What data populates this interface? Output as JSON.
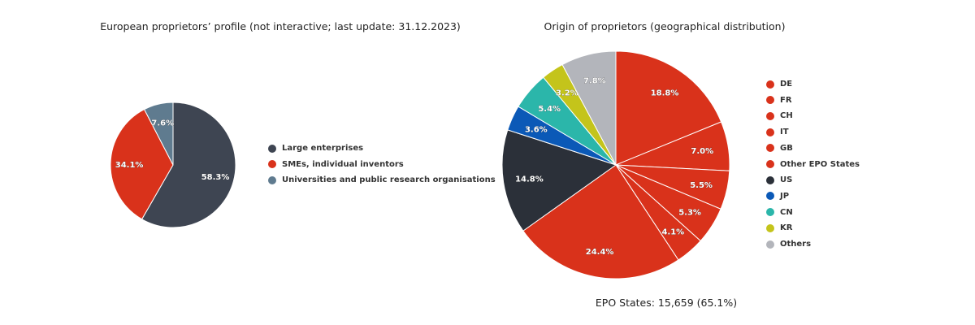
{
  "chart_data": [
    {
      "type": "pie",
      "title": "European proprietors’ profile (not interactive; last update: 31.12.2023)",
      "legend_placement": "right",
      "slices": [
        {
          "name": "Large enterprises",
          "value": 58.3,
          "label": "58.3%",
          "color": "#3e4552"
        },
        {
          "name": "SMEs, individual inventors",
          "value": 34.1,
          "label": "34.1%",
          "color": "#d9321b"
        },
        {
          "name": "Universities and public research organisations",
          "value": 7.6,
          "label": "7.6%",
          "color": "#5f7b8f"
        }
      ]
    },
    {
      "type": "pie",
      "title": "Origin of proprietors (geographical distribution)",
      "legend_placement": "right",
      "caption": "EPO States: 15,659 (65.1%)",
      "slices": [
        {
          "name": "DE",
          "value": 18.8,
          "label": "18.8%",
          "color": "#d9321b"
        },
        {
          "name": "FR",
          "value": 7.0,
          "label": "7.0%",
          "color": "#d9321b"
        },
        {
          "name": "CH",
          "value": 5.5,
          "label": "5.5%",
          "color": "#d9321b"
        },
        {
          "name": "IT",
          "value": 5.3,
          "label": "5.3%",
          "color": "#d9321b"
        },
        {
          "name": "GB",
          "value": 4.1,
          "label": "4.1%",
          "color": "#d9321b"
        },
        {
          "name": "Other EPO States",
          "value": 24.4,
          "label": "24.4%",
          "color": "#d9321b"
        },
        {
          "name": "US",
          "value": 14.8,
          "label": "14.8%",
          "color": "#2b3039"
        },
        {
          "name": "JP",
          "value": 3.6,
          "label": "3.6%",
          "color": "#0b59b7"
        },
        {
          "name": "CN",
          "value": 5.4,
          "label": "5.4%",
          "color": "#2bb6aa"
        },
        {
          "name": "KR",
          "value": 3.2,
          "label": "3.2%",
          "color": "#c4c41b"
        },
        {
          "name": "Others",
          "value": 7.8,
          "label": "7.8%",
          "color": "#b3b5bb"
        }
      ]
    }
  ]
}
